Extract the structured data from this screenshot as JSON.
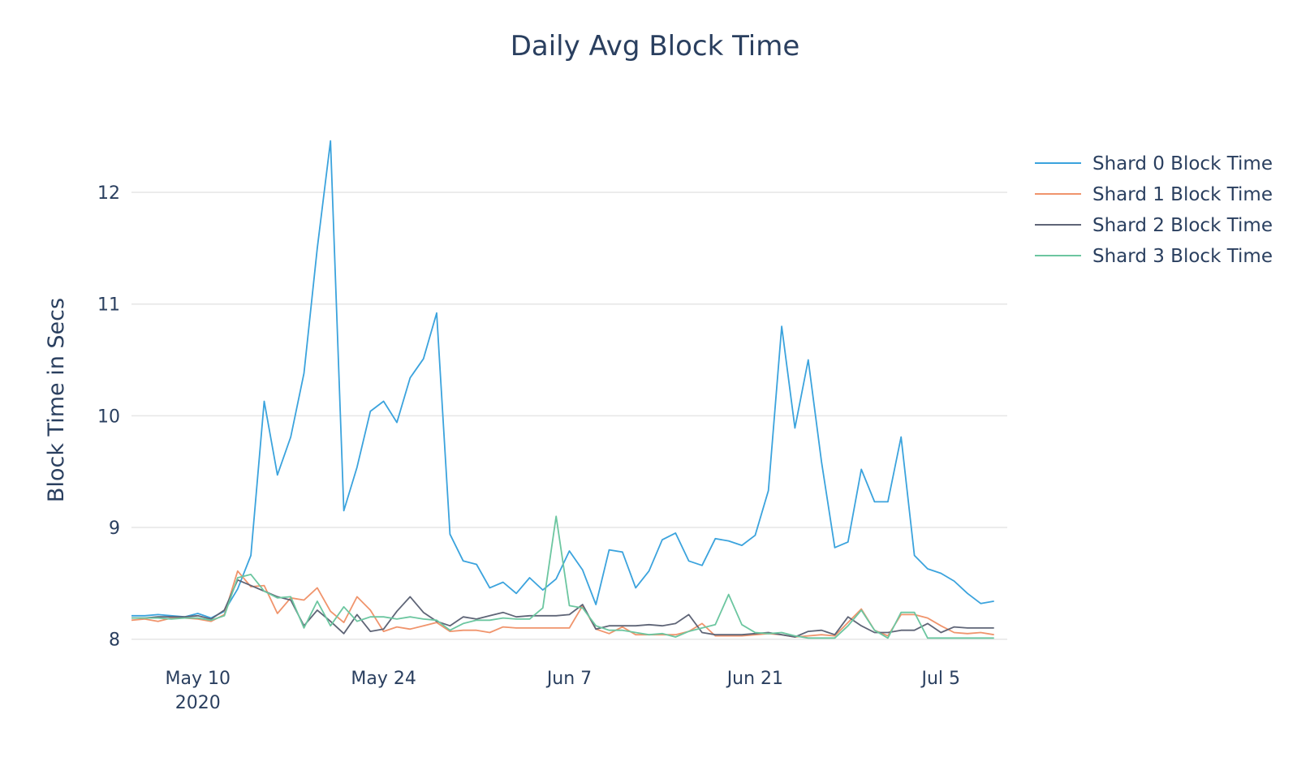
{
  "chart_data": {
    "type": "line",
    "title": "Daily Avg Block Time",
    "ylabel": "Block Time in Secs",
    "xlabel": "",
    "x_start": "2020-05-05",
    "x_end": "2020-07-10",
    "ylim": [
      7.78,
      12.85
    ],
    "yticks": [
      8,
      9,
      10,
      11,
      12
    ],
    "xticks": [
      {
        "date": "2020-05-10",
        "label": "May 10",
        "sublabel": "2020"
      },
      {
        "date": "2020-05-24",
        "label": "May 24",
        "sublabel": ""
      },
      {
        "date": "2020-06-07",
        "label": "Jun 7",
        "sublabel": ""
      },
      {
        "date": "2020-06-21",
        "label": "Jun 21",
        "sublabel": ""
      },
      {
        "date": "2020-07-05",
        "label": "Jul 5",
        "sublabel": ""
      }
    ],
    "grid": true,
    "legend_position": "top-right",
    "series": [
      {
        "name": "Shard 0 Block Time",
        "color": "#3ba3dd",
        "values": [
          8.21,
          8.21,
          8.22,
          8.21,
          8.2,
          8.23,
          8.19,
          8.25,
          8.45,
          8.75,
          10.13,
          9.47,
          9.81,
          10.38,
          11.5,
          12.46,
          9.15,
          9.54,
          10.04,
          10.13,
          9.94,
          10.34,
          10.51,
          10.92,
          8.94,
          8.7,
          8.67,
          8.46,
          8.51,
          8.41,
          8.55,
          8.44,
          8.54,
          8.79,
          8.62,
          8.31,
          8.8,
          8.78,
          8.46,
          8.61,
          8.89,
          8.95,
          8.7,
          8.66,
          8.9,
          8.88,
          8.84,
          8.93,
          9.33,
          10.8,
          9.89,
          10.5,
          9.59,
          8.82,
          8.87,
          9.52,
          9.23,
          9.23,
          9.81,
          8.75,
          8.63,
          8.59,
          8.52,
          8.41,
          8.32,
          8.34
        ]
      },
      {
        "name": "Shard 1 Block Time",
        "color": "#f0946c",
        "values": [
          8.17,
          8.18,
          8.16,
          8.19,
          8.19,
          8.18,
          8.16,
          8.22,
          8.61,
          8.47,
          8.48,
          8.23,
          8.37,
          8.35,
          8.46,
          8.25,
          8.15,
          8.38,
          8.26,
          8.07,
          8.11,
          8.09,
          8.12,
          8.15,
          8.07,
          8.08,
          8.08,
          8.06,
          8.11,
          8.1,
          8.1,
          8.1,
          8.1,
          8.1,
          8.3,
          8.09,
          8.05,
          8.11,
          8.04,
          8.04,
          8.04,
          8.04,
          8.07,
          8.14,
          8.03,
          8.03,
          8.03,
          8.04,
          8.05,
          8.04,
          8.02,
          8.03,
          8.04,
          8.03,
          8.15,
          8.27,
          8.08,
          8.03,
          8.22,
          8.22,
          8.19,
          8.12,
          8.06,
          8.05,
          8.06,
          8.04
        ]
      },
      {
        "name": "Shard 2 Block Time",
        "color": "#5f6577",
        "values": [
          8.19,
          8.19,
          8.2,
          8.2,
          8.2,
          8.21,
          8.18,
          8.26,
          8.53,
          8.48,
          8.43,
          8.38,
          8.35,
          8.12,
          8.26,
          8.16,
          8.05,
          8.22,
          8.07,
          8.09,
          8.25,
          8.38,
          8.24,
          8.16,
          8.12,
          8.2,
          8.18,
          8.21,
          8.24,
          8.2,
          8.21,
          8.21,
          8.21,
          8.22,
          8.31,
          8.09,
          8.12,
          8.12,
          8.12,
          8.13,
          8.12,
          8.14,
          8.22,
          8.06,
          8.04,
          8.04,
          8.04,
          8.05,
          8.06,
          8.04,
          8.02,
          8.07,
          8.08,
          8.04,
          8.2,
          8.12,
          8.06,
          8.06,
          8.08,
          8.08,
          8.14,
          8.06,
          8.11,
          8.1,
          8.1,
          8.1
        ]
      },
      {
        "name": "Shard 3 Block Time",
        "color": "#6cc6a0",
        "values": [
          8.19,
          8.19,
          8.19,
          8.18,
          8.19,
          8.19,
          8.17,
          8.21,
          8.55,
          8.58,
          8.43,
          8.37,
          8.38,
          8.1,
          8.34,
          8.12,
          8.29,
          8.16,
          8.2,
          8.2,
          8.18,
          8.2,
          8.18,
          8.17,
          8.08,
          8.14,
          8.17,
          8.17,
          8.19,
          8.18,
          8.18,
          8.28,
          9.1,
          8.3,
          8.28,
          8.12,
          8.08,
          8.08,
          8.06,
          8.04,
          8.05,
          8.02,
          8.07,
          8.1,
          8.13,
          8.4,
          8.13,
          8.06,
          8.05,
          8.06,
          8.03,
          8.01,
          8.01,
          8.01,
          8.12,
          8.26,
          8.08,
          8.01,
          8.24,
          8.24,
          8.01,
          8.01,
          8.01,
          8.01,
          8.01,
          8.01
        ]
      }
    ]
  }
}
